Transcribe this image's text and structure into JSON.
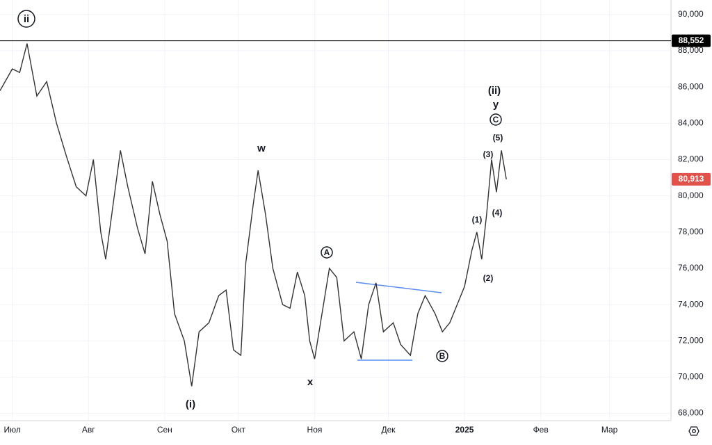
{
  "chart_data": {
    "type": "line",
    "x": [
      -5,
      0,
      3,
      6,
      10,
      14,
      18,
      22,
      26,
      30,
      33,
      36,
      38,
      41,
      44,
      47,
      51,
      54,
      57,
      60,
      63,
      66,
      70,
      73,
      76,
      80,
      84,
      87,
      90,
      93,
      95,
      98,
      100,
      103,
      106,
      110,
      113,
      116,
      119,
      121,
      123,
      126,
      129,
      132,
      135,
      139,
      142,
      145,
      148,
      151,
      155,
      158,
      162,
      165,
      168,
      172,
      175,
      178,
      181,
      184,
      187,
      189,
      191,
      193,
      195,
      197,
      199,
      201
    ],
    "series": [
      {
        "color": "#333333",
        "values": [
          85800,
          87000,
          86800,
          88400,
          85500,
          86300,
          84000,
          82200,
          80500,
          80000,
          82000,
          78000,
          76500,
          79500,
          82500,
          80500,
          78200,
          76800,
          80800,
          79000,
          77500,
          73500,
          72000,
          69500,
          72500,
          73000,
          74500,
          74800,
          71500,
          71200,
          76300,
          79500,
          81400,
          79000,
          76000,
          74000,
          73800,
          75800,
          74500,
          72000,
          71000,
          73500,
          76000,
          75500,
          72000,
          72500,
          71000,
          74000,
          75200,
          72500,
          73000,
          71800,
          71200,
          73500,
          74500,
          73500,
          72500,
          73000,
          74000,
          75000,
          77000,
          78000,
          76500,
          79000,
          82000,
          80200,
          82500,
          80913
        ]
      }
    ],
    "xlim": [
      -5,
      268
    ],
    "ylim": [
      67600,
      90800
    ],
    "xticks": [
      {
        "value": 0,
        "label": "Июл"
      },
      {
        "value": 31,
        "label": "Авг"
      },
      {
        "value": 62,
        "label": "Сен"
      },
      {
        "value": 92,
        "label": "Окт"
      },
      {
        "value": 123,
        "label": "Ноя"
      },
      {
        "value": 153,
        "label": "Дек"
      },
      {
        "value": 184,
        "label": "2025"
      },
      {
        "value": 215,
        "label": "Фев"
      },
      {
        "value": 243,
        "label": "Мар"
      }
    ],
    "yticks": [
      {
        "value": 68000,
        "label": "68,000"
      },
      {
        "value": 70000,
        "label": "70,000"
      },
      {
        "value": 72000,
        "label": "72,000"
      },
      {
        "value": 74000,
        "label": "74,000"
      },
      {
        "value": 76000,
        "label": "76,000"
      },
      {
        "value": 78000,
        "label": "78,000"
      },
      {
        "value": 80000,
        "label": "80,000"
      },
      {
        "value": 82000,
        "label": "82,000"
      },
      {
        "value": 84000,
        "label": "84,000"
      },
      {
        "value": 86000,
        "label": "86,000"
      },
      {
        "value": 88000,
        "label": "88,000"
      },
      {
        "value": 90000,
        "label": "90,000"
      }
    ],
    "price_lines": [
      {
        "value": 88552,
        "label": "88,552",
        "color": "#000000"
      },
      {
        "value": 80913,
        "label": "80,913",
        "color": "#e0524a"
      }
    ],
    "annotations": [
      "ii",
      "(i)",
      "w",
      "x",
      "A",
      "B",
      "(ii)",
      "y",
      "C",
      "(1)",
      "(2)",
      "(3)",
      "(4)",
      "(5)"
    ],
    "grid": true
  }
}
